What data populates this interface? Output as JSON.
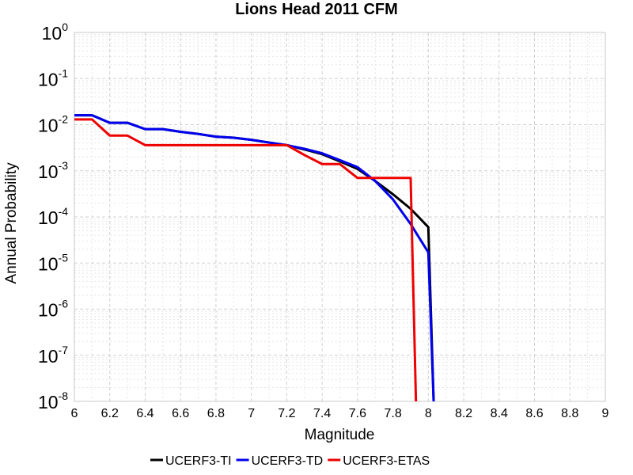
{
  "chart_data": {
    "type": "line",
    "title": "Lions Head 2011 CFM",
    "xlabel": "Magnitude",
    "ylabel": "Annual Probability",
    "xlim": [
      6,
      9
    ],
    "ylim": [
      1e-08,
      1
    ],
    "y_scale": "log",
    "grid": true,
    "legend_position": "bottom",
    "x_ticks": [
      "6",
      "6.2",
      "6.4",
      "6.6",
      "6.8",
      "7",
      "7.2",
      "7.4",
      "7.6",
      "7.8",
      "8",
      "8.2",
      "8.4",
      "8.6",
      "8.8",
      "9"
    ],
    "y_tick_base": "10",
    "y_tick_exponents": [
      "0",
      "-1",
      "-2",
      "-3",
      "-4",
      "-5",
      "-6",
      "-7",
      "-8"
    ],
    "series": [
      {
        "name": "UCERF3-TI",
        "color": "#000000",
        "x": [
          6.0,
          6.1,
          6.2,
          6.3,
          6.4,
          6.5,
          6.6,
          6.7,
          6.8,
          6.9,
          7.0,
          7.1,
          7.2,
          7.3,
          7.4,
          7.5,
          7.6,
          7.7,
          7.8,
          7.9,
          8.0,
          8.03
        ],
        "y": [
          0.016,
          0.016,
          0.011,
          0.011,
          0.008,
          0.008,
          0.007,
          0.0063,
          0.0055,
          0.0052,
          0.0047,
          0.0041,
          0.0036,
          0.0029,
          0.0023,
          0.0016,
          0.0011,
          0.0006,
          0.00031,
          0.00015,
          6e-05,
          1e-08
        ]
      },
      {
        "name": "UCERF3-TD",
        "color": "#0000ee",
        "x": [
          6.0,
          6.1,
          6.2,
          6.3,
          6.4,
          6.5,
          6.6,
          6.7,
          6.8,
          6.9,
          7.0,
          7.1,
          7.2,
          7.3,
          7.4,
          7.5,
          7.6,
          7.7,
          7.8,
          7.9,
          8.0,
          8.03
        ],
        "y": [
          0.016,
          0.016,
          0.011,
          0.011,
          0.008,
          0.008,
          0.007,
          0.0063,
          0.0055,
          0.0052,
          0.0047,
          0.0041,
          0.0036,
          0.003,
          0.0024,
          0.0017,
          0.0012,
          0.0006,
          0.00024,
          7e-05,
          1.7e-05,
          1e-08
        ]
      },
      {
        "name": "UCERF3-ETAS",
        "color": "#ee0000",
        "x": [
          6.0,
          6.1,
          6.2,
          6.3,
          6.4,
          6.5,
          6.6,
          6.7,
          6.8,
          6.9,
          7.0,
          7.1,
          7.2,
          7.3,
          7.4,
          7.5,
          7.6,
          7.7,
          7.8,
          7.9,
          7.93
        ],
        "y": [
          0.013,
          0.013,
          0.0058,
          0.0058,
          0.0036,
          0.0036,
          0.0036,
          0.0036,
          0.0036,
          0.0036,
          0.0036,
          0.0036,
          0.0036,
          0.0022,
          0.0014,
          0.0014,
          0.0007,
          0.0007,
          0.0007,
          0.0007,
          1e-08
        ]
      }
    ]
  }
}
